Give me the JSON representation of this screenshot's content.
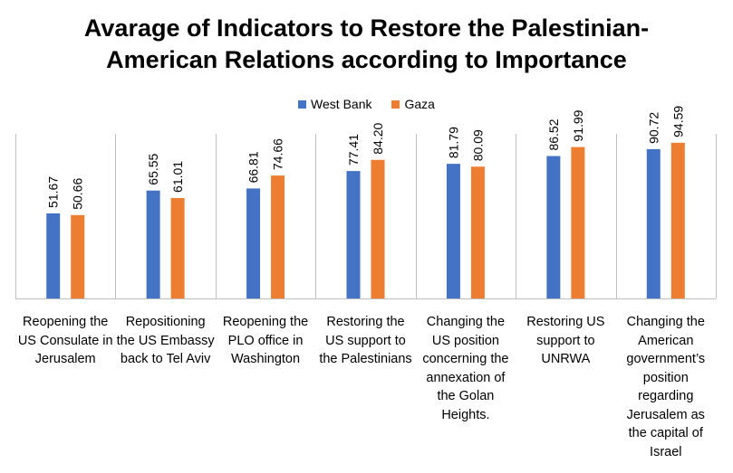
{
  "chart_data": {
    "type": "bar",
    "title": [
      "Avarage of Indicators to Restore the Palestinian-",
      "American Relations according to Importance"
    ],
    "categories": [
      "Reopening the US Consulate in Jerusalem",
      "Repositioning the US Embassy back to Tel Aviv",
      "Reopening the PLO office in Washington",
      "Restoring the US support to the Palestinians",
      "Changing the US position concerning the annexation of the Golan Heights.",
      "Restoring US support to UNRWA",
      "Changing the American government’s position regarding Jerusalem as the capital of Israel"
    ],
    "series": [
      {
        "name": "West Bank",
        "color": "#4472C4",
        "values": [
          51.67,
          65.55,
          66.81,
          77.41,
          81.79,
          86.52,
          90.72
        ]
      },
      {
        "name": "Gaza",
        "color": "#ED7D31",
        "values": [
          50.66,
          61.01,
          74.66,
          84.2,
          80.09,
          91.99,
          94.59
        ]
      }
    ],
    "ylim": [
      0,
      100
    ],
    "legend": "top",
    "grid": false,
    "data_labels": true,
    "axis_color": "#BFBFBF"
  }
}
